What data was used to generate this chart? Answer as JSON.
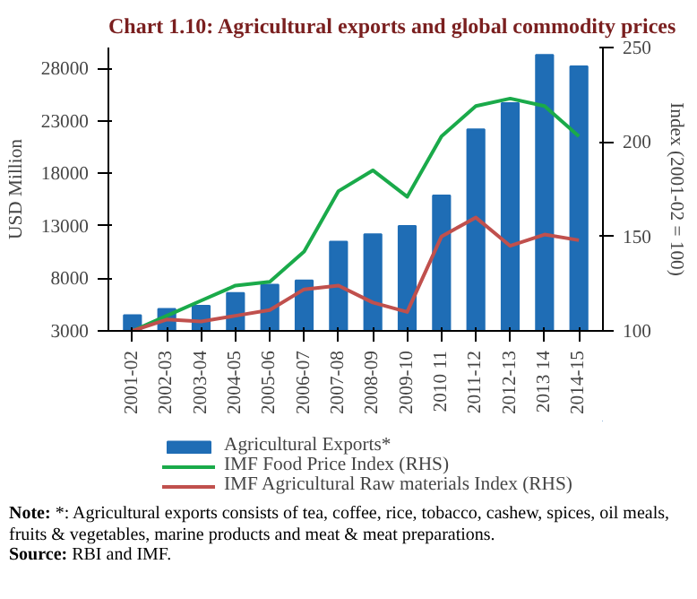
{
  "chart_data": {
    "type": "bar",
    "title": "Chart 1.10: Agricultural exports and global commodity prices",
    "categories": [
      "2001-02",
      "2002-03",
      "2003-04",
      "2004-05",
      "2005-06",
      "2006-07",
      "2007-08",
      "2008-09",
      "2009-10",
      "2010 11",
      "2011-12",
      "2012-13",
      "2013 14",
      "2014-15"
    ],
    "series": [
      {
        "name": "Agricultural Exports*",
        "color": "#1f6db5",
        "values": [
          4500,
          5100,
          5400,
          6600,
          7400,
          7800,
          11500,
          12200,
          13000,
          15900,
          22200,
          24700,
          29300,
          28200
        ]
      },
      {
        "name": "IMF Food Price Index (RHS)",
        "type": "line",
        "axis": "y2",
        "color": "#1aaa4a",
        "values": [
          100,
          108,
          116,
          124,
          126,
          142,
          174,
          185,
          171,
          203,
          219,
          223,
          219,
          203
        ]
      },
      {
        "name": "IMF Agricultural Raw materials Index (RHS)",
        "type": "line",
        "axis": "y2",
        "color": "#c0504d",
        "values": [
          100,
          106,
          105,
          108,
          111,
          122,
          124,
          115,
          110,
          150,
          160,
          145,
          151,
          148
        ]
      }
    ],
    "ylabel": "USD Million",
    "y2label": "Index (2001-02 = 100)",
    "ylim": [
      3000,
      30000
    ],
    "yticks": [
      3000,
      8000,
      13000,
      18000,
      23000,
      28000
    ],
    "y2lim": [
      100,
      250
    ],
    "y2ticks": [
      100,
      150,
      200,
      250
    ],
    "grid": false,
    "legend": "bottom",
    "marker": "none",
    "line_style": "solid",
    "annotations": [
      "Note: *: Agricultural exports consists of tea, coffee, rice, tobacco, cashew, spices, oil meals, fruits & vegetables, marine products and meat & meat preparations.",
      "Source: RBI and IMF."
    ]
  }
}
